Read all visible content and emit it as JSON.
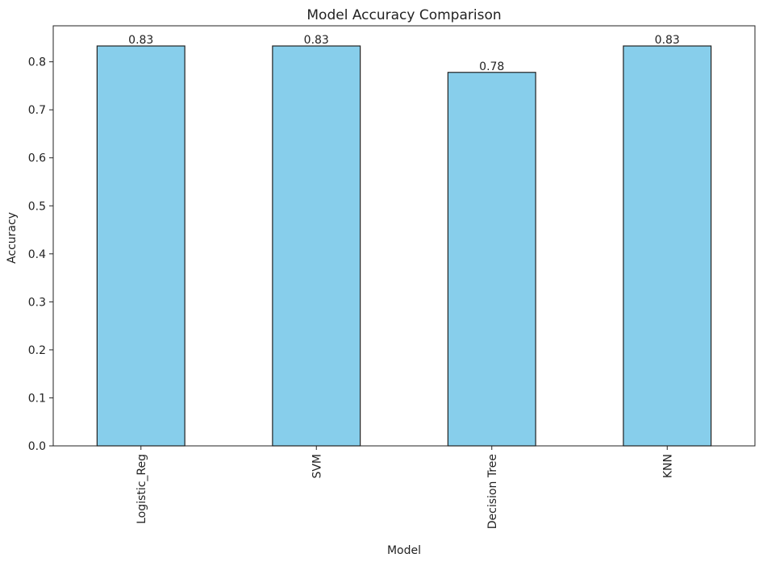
{
  "chart_data": {
    "type": "bar",
    "title": "Model Accuracy Comparison",
    "xlabel": "Model",
    "ylabel": "Accuracy",
    "categories": [
      "Logistic_Reg",
      "SVM",
      "Decision Tree",
      "KNN"
    ],
    "values": [
      0.833,
      0.833,
      0.778,
      0.833
    ],
    "data_labels": [
      "0.83",
      "0.83",
      "0.78",
      "0.83"
    ],
    "ylim": [
      0,
      0.875
    ],
    "yticks": [
      0.0,
      0.1,
      0.2,
      0.3,
      0.4,
      0.5,
      0.6,
      0.7,
      0.8
    ],
    "ytick_labels": [
      "0.0",
      "0.1",
      "0.2",
      "0.3",
      "0.4",
      "0.5",
      "0.6",
      "0.7",
      "0.8"
    ],
    "grid": false,
    "legend": "none",
    "x_tick_rotation": "vertical",
    "bar_color": "#87ceeb",
    "bar_edge_color": "#222222"
  }
}
